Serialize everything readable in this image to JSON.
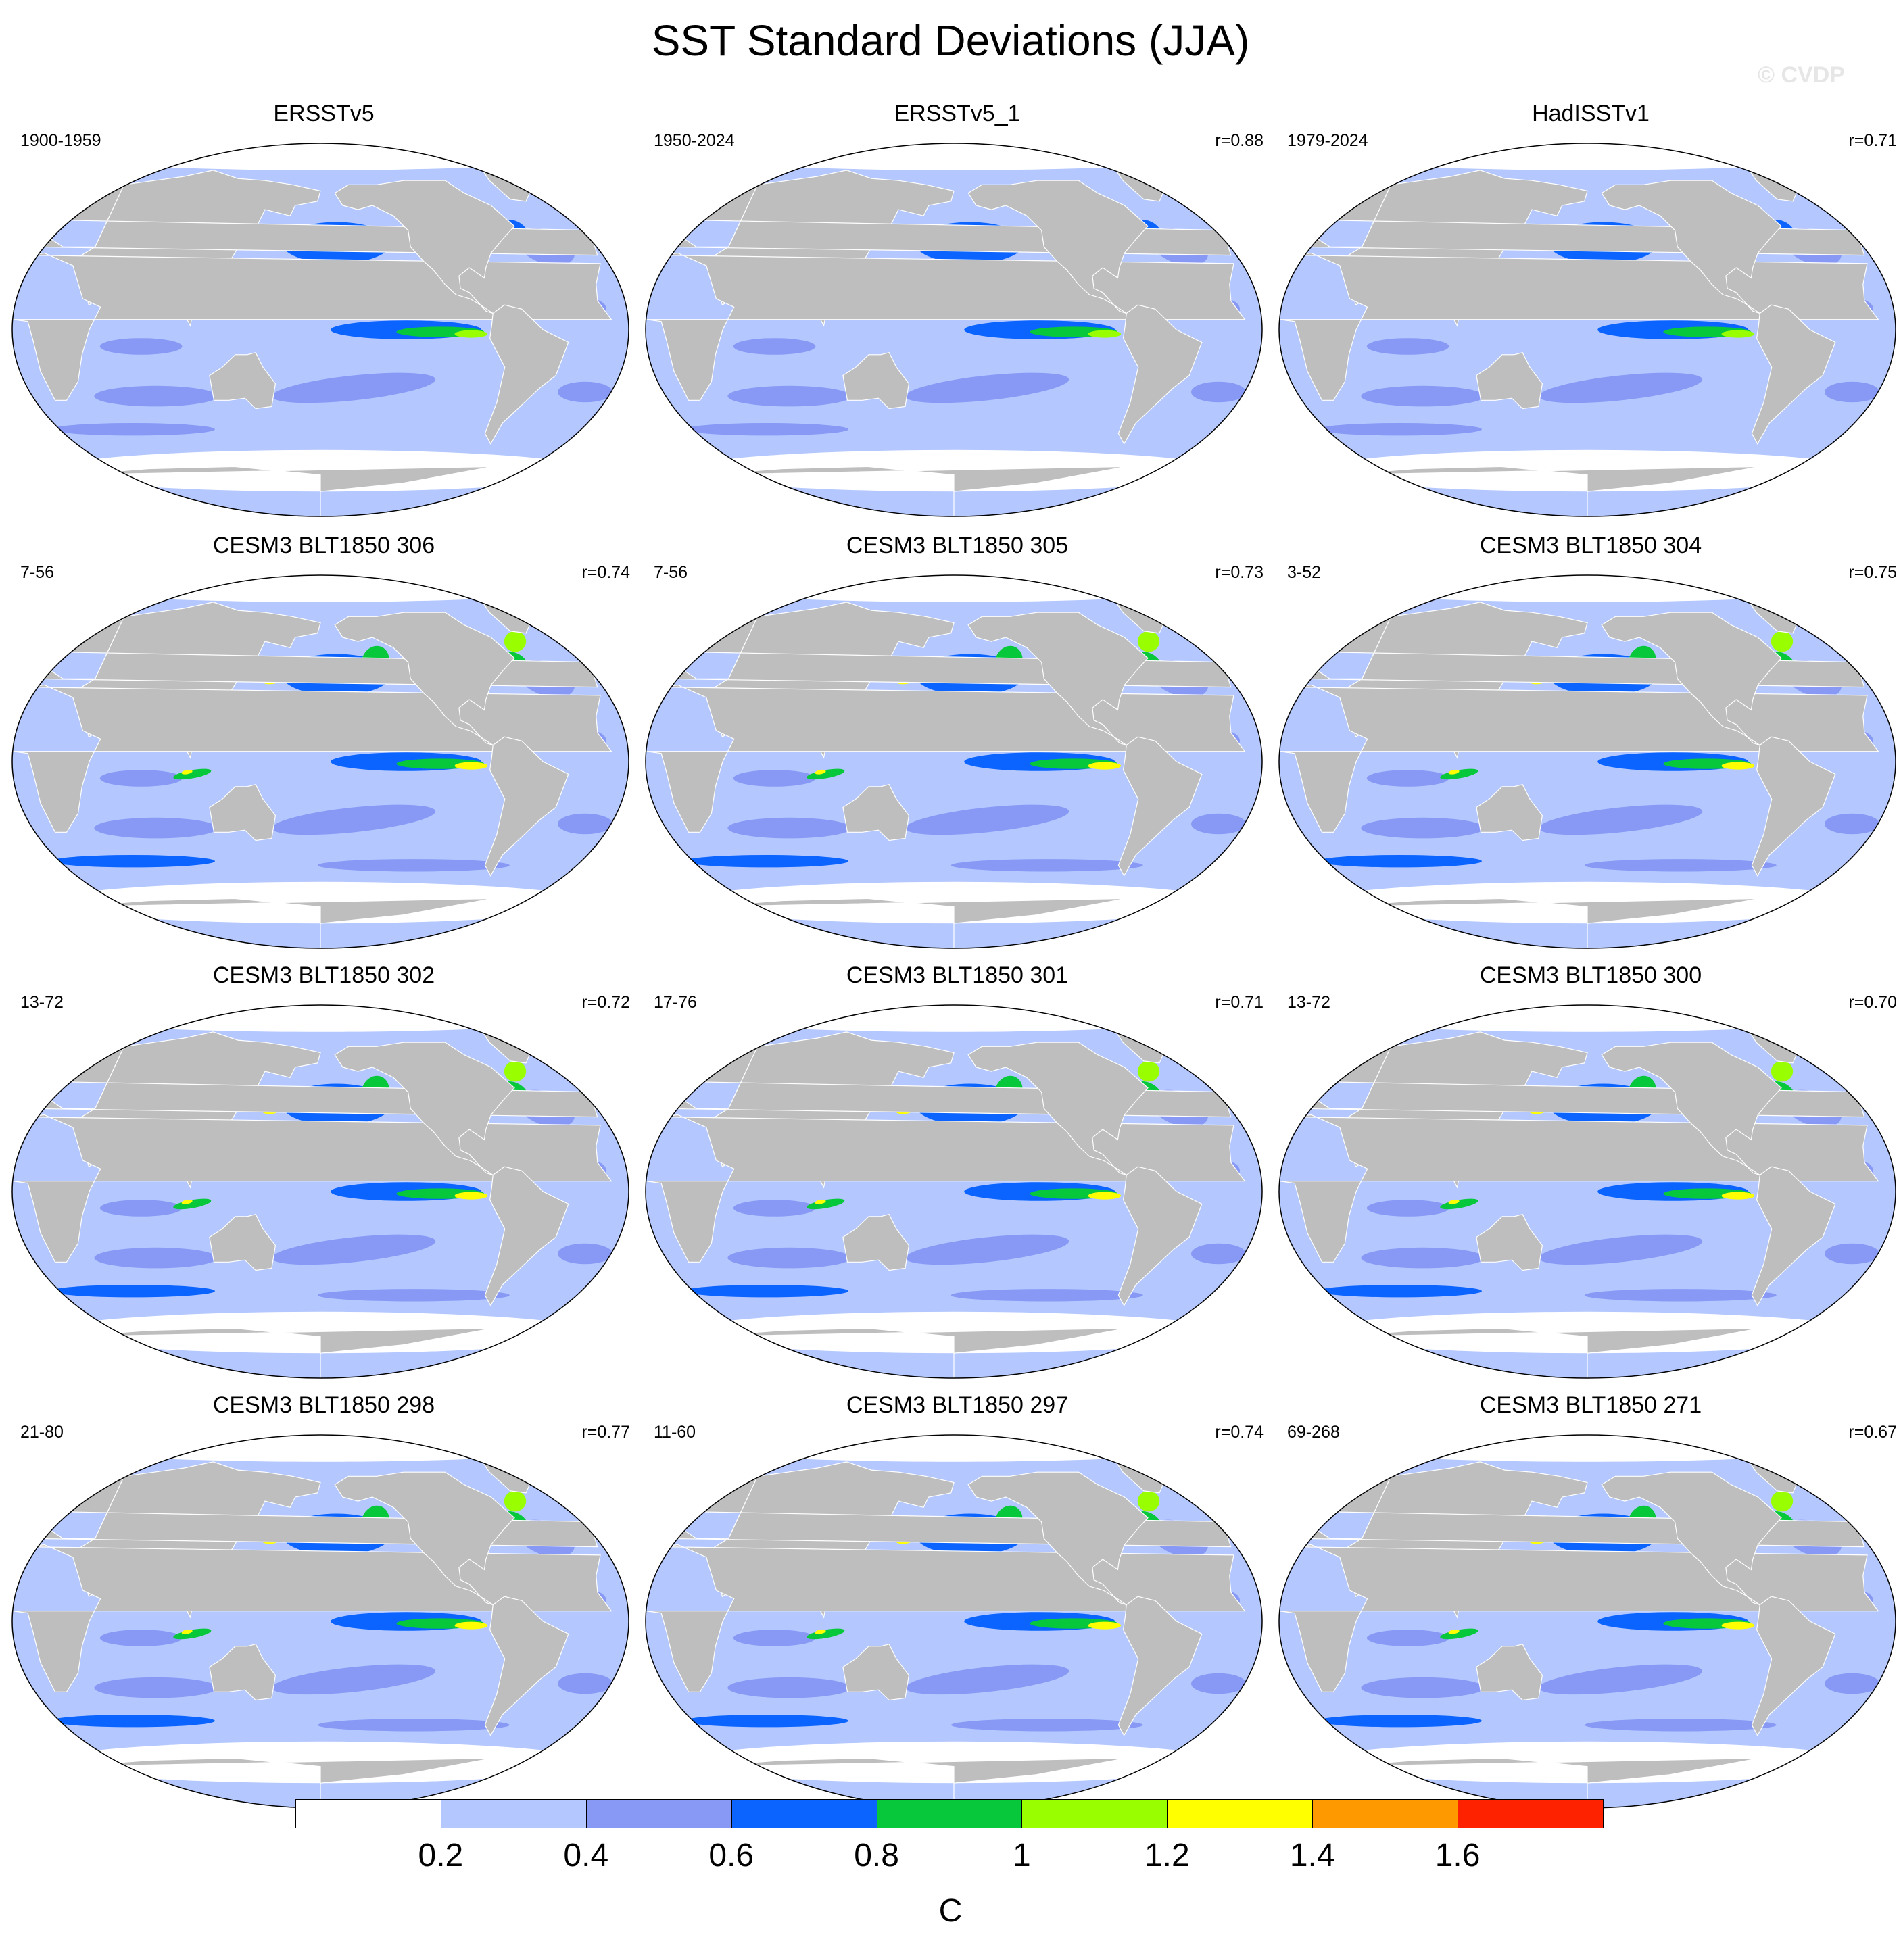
{
  "title": "SST Standard Deviations (JJA)",
  "watermark": "© CVDP",
  "colors": {
    "land": "#bebebe",
    "ocean_bins": [
      "#ffffff",
      "#b4c8ff",
      "#8799f5",
      "#0b64ff",
      "#06c83a",
      "#99ff00",
      "#ffff00",
      "#ff9900",
      "#ff2200"
    ]
  },
  "panels": [
    {
      "title": "ERSSTv5",
      "period": "1900-1959",
      "corr": "",
      "intensity": 0.45
    },
    {
      "title": "ERSSTv5_1",
      "period": "1950-2024",
      "corr": "r=0.88",
      "intensity": 0.4
    },
    {
      "title": "HadISSTv1",
      "period": "1979-2024",
      "corr": "r=0.71",
      "intensity": 0.25
    },
    {
      "title": "CESM3 BLT1850 306",
      "period": "7-56",
      "corr": "r=0.74",
      "intensity": 0.85
    },
    {
      "title": "CESM3 BLT1850 305",
      "period": "7-56",
      "corr": "r=0.73",
      "intensity": 0.85
    },
    {
      "title": "CESM3 BLT1850 304",
      "period": "3-52",
      "corr": "r=0.75",
      "intensity": 0.85
    },
    {
      "title": "CESM3 BLT1850 302",
      "period": "13-72",
      "corr": "r=0.72",
      "intensity": 0.85
    },
    {
      "title": "CESM3 BLT1850 301",
      "period": "17-76",
      "corr": "r=0.71",
      "intensity": 0.8
    },
    {
      "title": "CESM3 BLT1850 300",
      "period": "13-72",
      "corr": "r=0.70",
      "intensity": 0.85
    },
    {
      "title": "CESM3 BLT1850 298",
      "period": "21-80",
      "corr": "r=0.77",
      "intensity": 0.8
    },
    {
      "title": "CESM3 BLT1850 297",
      "period": "11-60",
      "corr": "r=0.74",
      "intensity": 0.85
    },
    {
      "title": "CESM3 BLT1850 271",
      "period": "69-268",
      "corr": "r=0.67",
      "intensity": 0.9
    }
  ],
  "colorbar": {
    "unit": "C",
    "labels": [
      "0.2",
      "0.4",
      "0.6",
      "0.8",
      "1",
      "1.2",
      "1.4",
      "1.6"
    ]
  }
}
